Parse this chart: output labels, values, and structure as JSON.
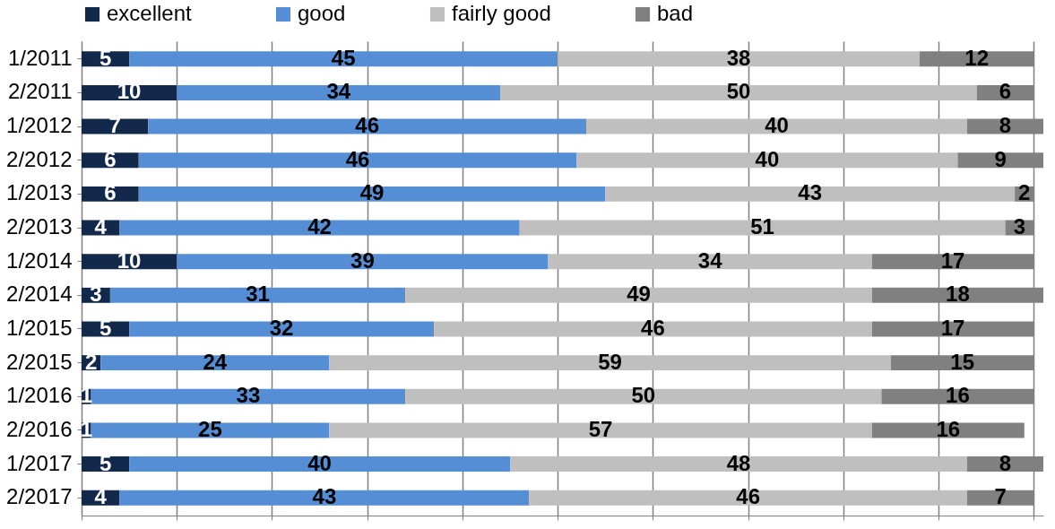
{
  "chart_data": {
    "type": "bar",
    "orientation": "horizontal",
    "stacked": true,
    "categories": [
      "1/2011",
      "2/2011",
      "1/2012",
      "2/2012",
      "1/2013",
      "2/2013",
      "1/2014",
      "2/2014",
      "1/2015",
      "2/2015",
      "1/2016",
      "2/2016",
      "1/2017",
      "2/2017"
    ],
    "series": [
      {
        "name": "excellent",
        "color": "#13294b",
        "values": [
          5,
          10,
          7,
          6,
          6,
          4,
          10,
          3,
          5,
          2,
          1,
          1,
          5,
          4
        ]
      },
      {
        "name": "good",
        "color": "#558ed5",
        "values": [
          45,
          34,
          46,
          46,
          49,
          42,
          39,
          31,
          32,
          24,
          33,
          25,
          40,
          43
        ]
      },
      {
        "name": "fairly good",
        "color": "#bfbfbf",
        "values": [
          38,
          50,
          40,
          40,
          43,
          51,
          34,
          49,
          46,
          59,
          50,
          57,
          48,
          46
        ]
      },
      {
        "name": "bad",
        "color": "#808080",
        "values": [
          12,
          6,
          8,
          9,
          2,
          3,
          17,
          18,
          17,
          15,
          16,
          16,
          8,
          7
        ]
      }
    ],
    "xlim": [
      0,
      101
    ],
    "xticks": [
      {
        "value": 0,
        "label": null
      },
      {
        "value": 10,
        "label": null
      },
      {
        "value": 20,
        "label": null
      },
      {
        "value": 30,
        "label": null
      },
      {
        "value": 40,
        "label": null
      },
      {
        "value": 50,
        "label": null
      },
      {
        "value": 60,
        "label": null
      },
      {
        "value": 70,
        "label": null
      },
      {
        "value": 80,
        "label": null
      },
      {
        "value": 90,
        "label": null
      },
      {
        "value": 100,
        "label": null
      }
    ],
    "grid": "x",
    "legend": "top",
    "tick_labels": "y",
    "data_labels": true
  }
}
